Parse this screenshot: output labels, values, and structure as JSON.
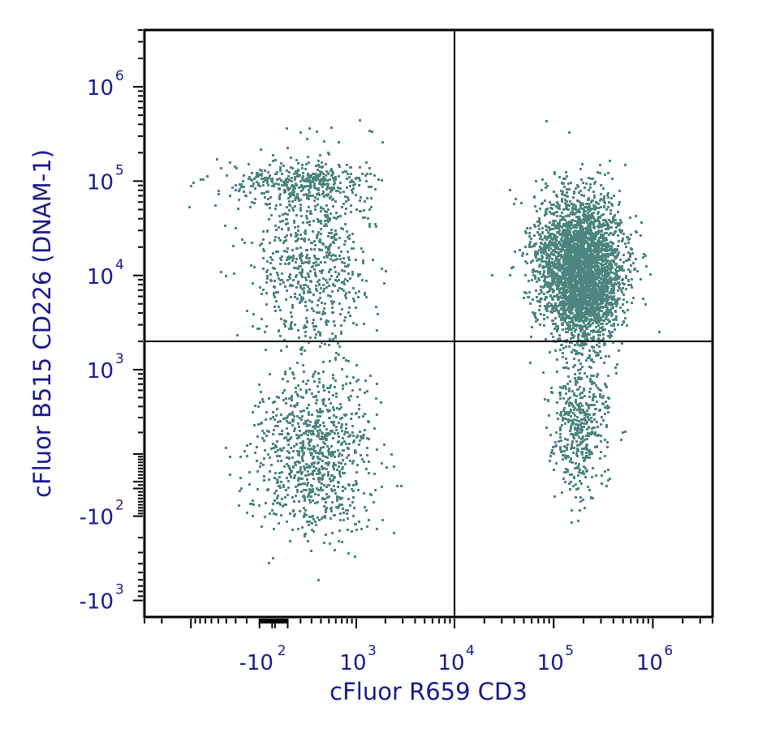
{
  "chart_data": {
    "type": "scatter",
    "subtype": "flow-cytometry-dot-plot",
    "xlabel": "cFluor R659 CD3",
    "ylabel": "cFluor B515 CD226 (DNAM-1)",
    "x_scale": "biexponential",
    "y_scale": "biexponential",
    "x_ticks": [
      {
        "base": "-10",
        "exp": "2",
        "value": -100
      },
      {
        "base": "10",
        "exp": "3",
        "value": 1000
      },
      {
        "base": "10",
        "exp": "4",
        "value": 10000
      },
      {
        "base": "10",
        "exp": "5",
        "value": 100000
      },
      {
        "base": "10",
        "exp": "6",
        "value": 1000000
      }
    ],
    "y_ticks": [
      {
        "base": "10",
        "exp": "6",
        "value": 1000000
      },
      {
        "base": "10",
        "exp": "5",
        "value": 100000
      },
      {
        "base": "10",
        "exp": "4",
        "value": 10000
      },
      {
        "base": "10",
        "exp": "3",
        "value": 1000
      },
      {
        "base": "-10",
        "exp": "2",
        "value": -100
      },
      {
        "base": "-10",
        "exp": "3",
        "value": -1000
      }
    ],
    "xlim": [
      -3000,
      4000000
    ],
    "ylim": [
      -1500,
      4000000
    ],
    "quadrant_gate": {
      "x": 10000,
      "y": 2000
    },
    "point_color": "#4d8580",
    "populations": [
      {
        "x_center": 180000,
        "y_center": 15000,
        "x_spread_decades": 0.22,
        "y_spread_decades": 0.35,
        "count": 2600
      },
      {
        "x_center": 200000,
        "y_center": 6000,
        "x_spread_decades": 0.18,
        "y_spread_decades": 0.25,
        "count": 900
      },
      {
        "x_center": 180000,
        "y_center": 300,
        "x_spread_decades": 0.14,
        "y_spread_decades": 0.4,
        "count": 500
      },
      {
        "x_center": 300,
        "y_center": 15000,
        "x_spread_decades": 0.3,
        "y_spread_decades": 0.5,
        "count": 700
      },
      {
        "x_center": 200,
        "y_center": 100000,
        "x_spread_decades": 0.35,
        "y_spread_decades": 0.12,
        "count": 350
      },
      {
        "x_center": 300,
        "y_center": 100,
        "x_spread_decades": 0.3,
        "y_spread_decades": 0.45,
        "count": 900
      }
    ],
    "grid": false,
    "legend": "none"
  }
}
